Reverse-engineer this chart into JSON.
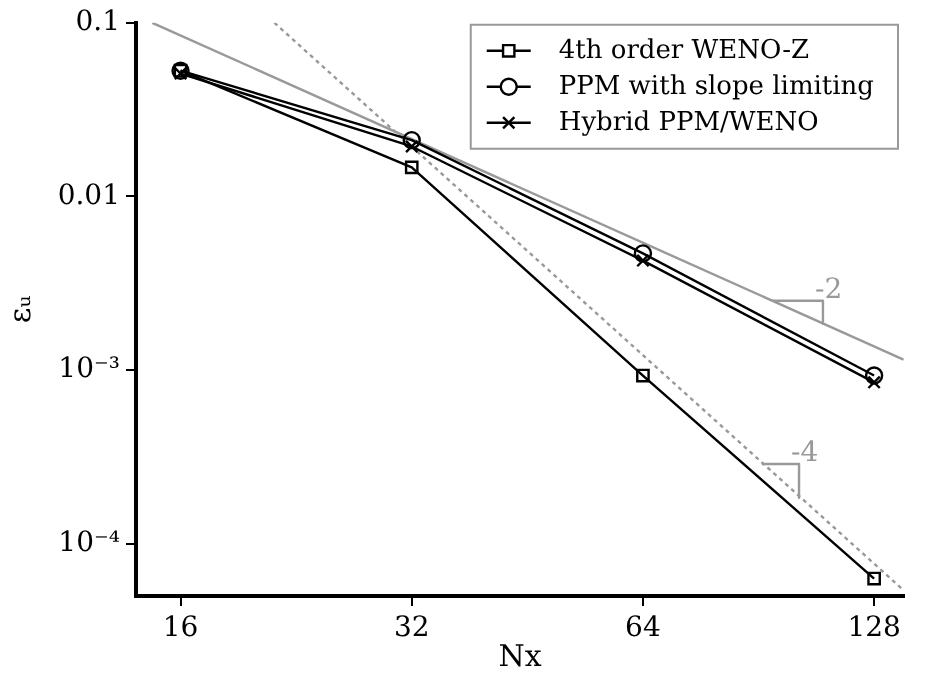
{
  "chart_data": {
    "type": "line",
    "xlabel": "Nx",
    "ylabel": "εᵤ",
    "log": "xy",
    "grid": false,
    "legend": "top right",
    "line_style": "solid",
    "x": [
      16,
      32,
      64,
      128
    ],
    "xlim": [
      14,
      140
    ],
    "xticks": [
      16,
      32,
      64,
      128
    ],
    "ylim": [
      5e-05,
      0.1
    ],
    "yticks": [
      {
        "value": 0.1,
        "label": "0.1"
      },
      {
        "value": 0.01,
        "label": "0.01"
      },
      {
        "value": 0.001,
        "label": "10⁻³"
      },
      {
        "value": 0.0001,
        "label": "10⁻⁴"
      }
    ],
    "series": [
      {
        "name": "4th order WENO-Z",
        "color": "#000000",
        "marker": "square",
        "values": [
          0.053,
          0.0147,
          0.00093,
          6.3e-05
        ]
      },
      {
        "name": "PPM with slope limiting",
        "color": "#000000",
        "marker": "circle",
        "values": [
          0.053,
          0.0211,
          0.0047,
          0.00093
        ]
      },
      {
        "name": "Hybrid PPM/WENO",
        "color": "#000000",
        "marker": "cross",
        "values": [
          0.051,
          0.0194,
          0.00427,
          0.00085
        ]
      },
      {
        "color": "#999999",
        "marker": "none",
        "line_style": "solid",
        "x": [
          14.7,
          139.8
        ],
        "values": [
          0.1,
          0.00115
        ]
      },
      {
        "color": "#999999",
        "marker": "none",
        "line_style": "dotted",
        "x": [
          21.2,
          139.8
        ],
        "values": [
          0.1,
          5.4e-05
        ]
      },
      {
        "color": "#999999",
        "marker": "none",
        "line_style": "solid",
        "x": [
          94.2,
          109.8,
          109.8
        ],
        "values": [
          0.00251,
          0.00251,
          0.00185
        ]
      },
      {
        "color": "#999999",
        "marker": "none",
        "line_style": "solid",
        "x": [
          91.4,
          102.2,
          102.2
        ],
        "values": [
          0.000288,
          0.000288,
          0.000184
        ]
      }
    ],
    "annotations": [
      {
        "text": "-2",
        "x": 109.8,
        "y": 0.00251
      },
      {
        "text": "-4",
        "x": 102.2,
        "y": 0.000288
      }
    ]
  }
}
